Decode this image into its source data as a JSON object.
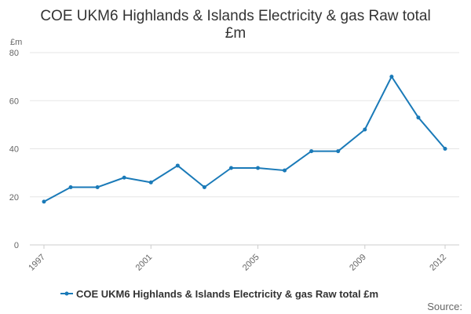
{
  "title_lines": [
    "COE UKM6 Highlands & Islands Electricity & gas Raw total",
    "£m"
  ],
  "source_label": "Source:",
  "colors": {
    "series": "#1a7ab8",
    "grid": "#e6e6e6",
    "axis": "#cccccc"
  },
  "chart_data": {
    "type": "line",
    "title": "COE UKM6 Highlands & Islands Electricity & gas Raw total £m",
    "ylabel": "£m",
    "xlabel": "",
    "x": [
      1997,
      1998,
      1999,
      2000,
      2001,
      2002,
      2003,
      2004,
      2005,
      2006,
      2007,
      2008,
      2009,
      2010,
      2011,
      2012
    ],
    "x_tick_labels": [
      "1997",
      "2001",
      "2005",
      "2009",
      "2012"
    ],
    "y_ticks": [
      0,
      20,
      40,
      60,
      80
    ],
    "ylim": [
      0,
      80
    ],
    "grid": true,
    "legend_position": "bottom",
    "series": [
      {
        "name": "COE UKM6 Highlands & Islands Electricity & gas Raw total £m",
        "values": [
          18,
          24,
          24,
          28,
          26,
          33,
          24,
          32,
          32,
          31,
          39,
          39,
          48,
          70,
          53,
          40
        ]
      }
    ]
  }
}
